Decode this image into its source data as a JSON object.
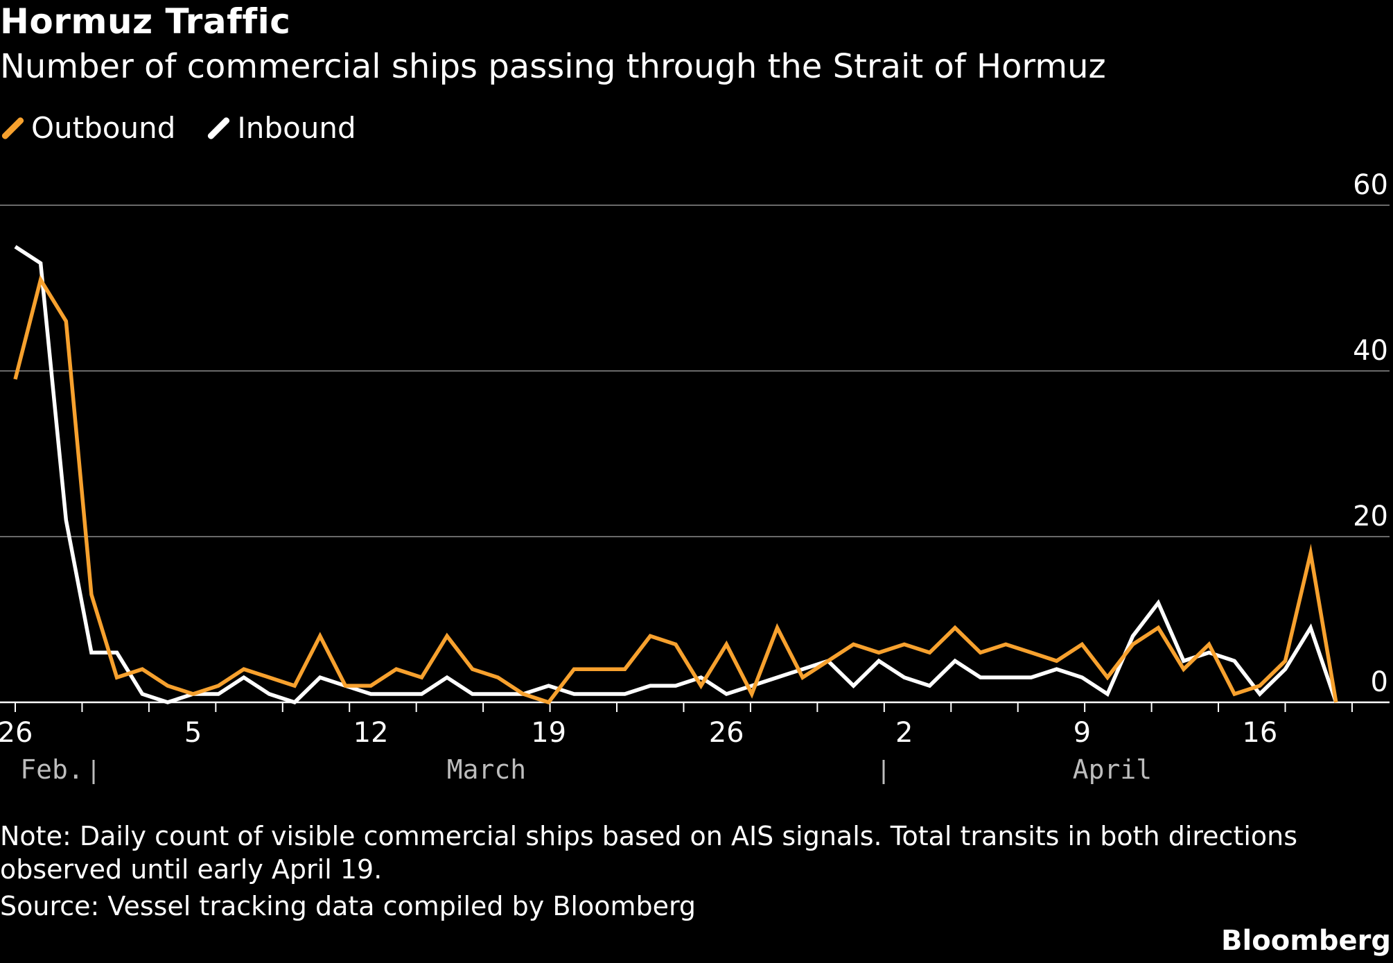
{
  "chart_data": {
    "type": "line",
    "title": "Hormuz Traffic",
    "subtitle": "Number of commercial ships passing through the Strait of Hormuz",
    "x_start": "Feb. 26",
    "x_tick_labels": [
      "26",
      "5",
      "12",
      "19",
      "26",
      "2",
      "9",
      "16"
    ],
    "x_tick_day_index": [
      0,
      7,
      14,
      21,
      28,
      35,
      42,
      49
    ],
    "month_labels": [
      "Feb.",
      "March",
      "April"
    ],
    "y_ticks": [
      0,
      20,
      40,
      60
    ],
    "ylim": [
      0,
      60
    ],
    "grid": "horizontal",
    "legend_position": "top-left",
    "series": [
      {
        "name": "Outbound",
        "color": "#f7a12e",
        "values": [
          39,
          51,
          46,
          13,
          3,
          4,
          2,
          1,
          2,
          4,
          3,
          2,
          8,
          2,
          2,
          4,
          3,
          8,
          4,
          3,
          1,
          0,
          4,
          4,
          4,
          8,
          7,
          2,
          7,
          1,
          9,
          3,
          5,
          7,
          6,
          7,
          6,
          9,
          6,
          7,
          6,
          5,
          7,
          3,
          7,
          9,
          4,
          7,
          1,
          2,
          5,
          18,
          0
        ]
      },
      {
        "name": "Inbound",
        "color": "#ffffff",
        "values": [
          55,
          53,
          22,
          6,
          6,
          1,
          0,
          1,
          1,
          3,
          1,
          0,
          3,
          2,
          1,
          1,
          1,
          3,
          1,
          1,
          1,
          2,
          1,
          1,
          1,
          2,
          2,
          3,
          1,
          2,
          3,
          4,
          5,
          2,
          5,
          3,
          2,
          5,
          3,
          3,
          3,
          4,
          3,
          1,
          8,
          12,
          5,
          6,
          5,
          1,
          4,
          9,
          0
        ]
      }
    ]
  },
  "legend": {
    "outbound_label": "Outbound",
    "inbound_label": "Inbound"
  },
  "footer": {
    "note": "Note: Daily count of visible commercial ships based on AIS signals. Total transits in both directions observed until early April 19.",
    "source": "Source: Vessel tracking data compiled by Bloomberg",
    "brand": "Bloomberg"
  }
}
